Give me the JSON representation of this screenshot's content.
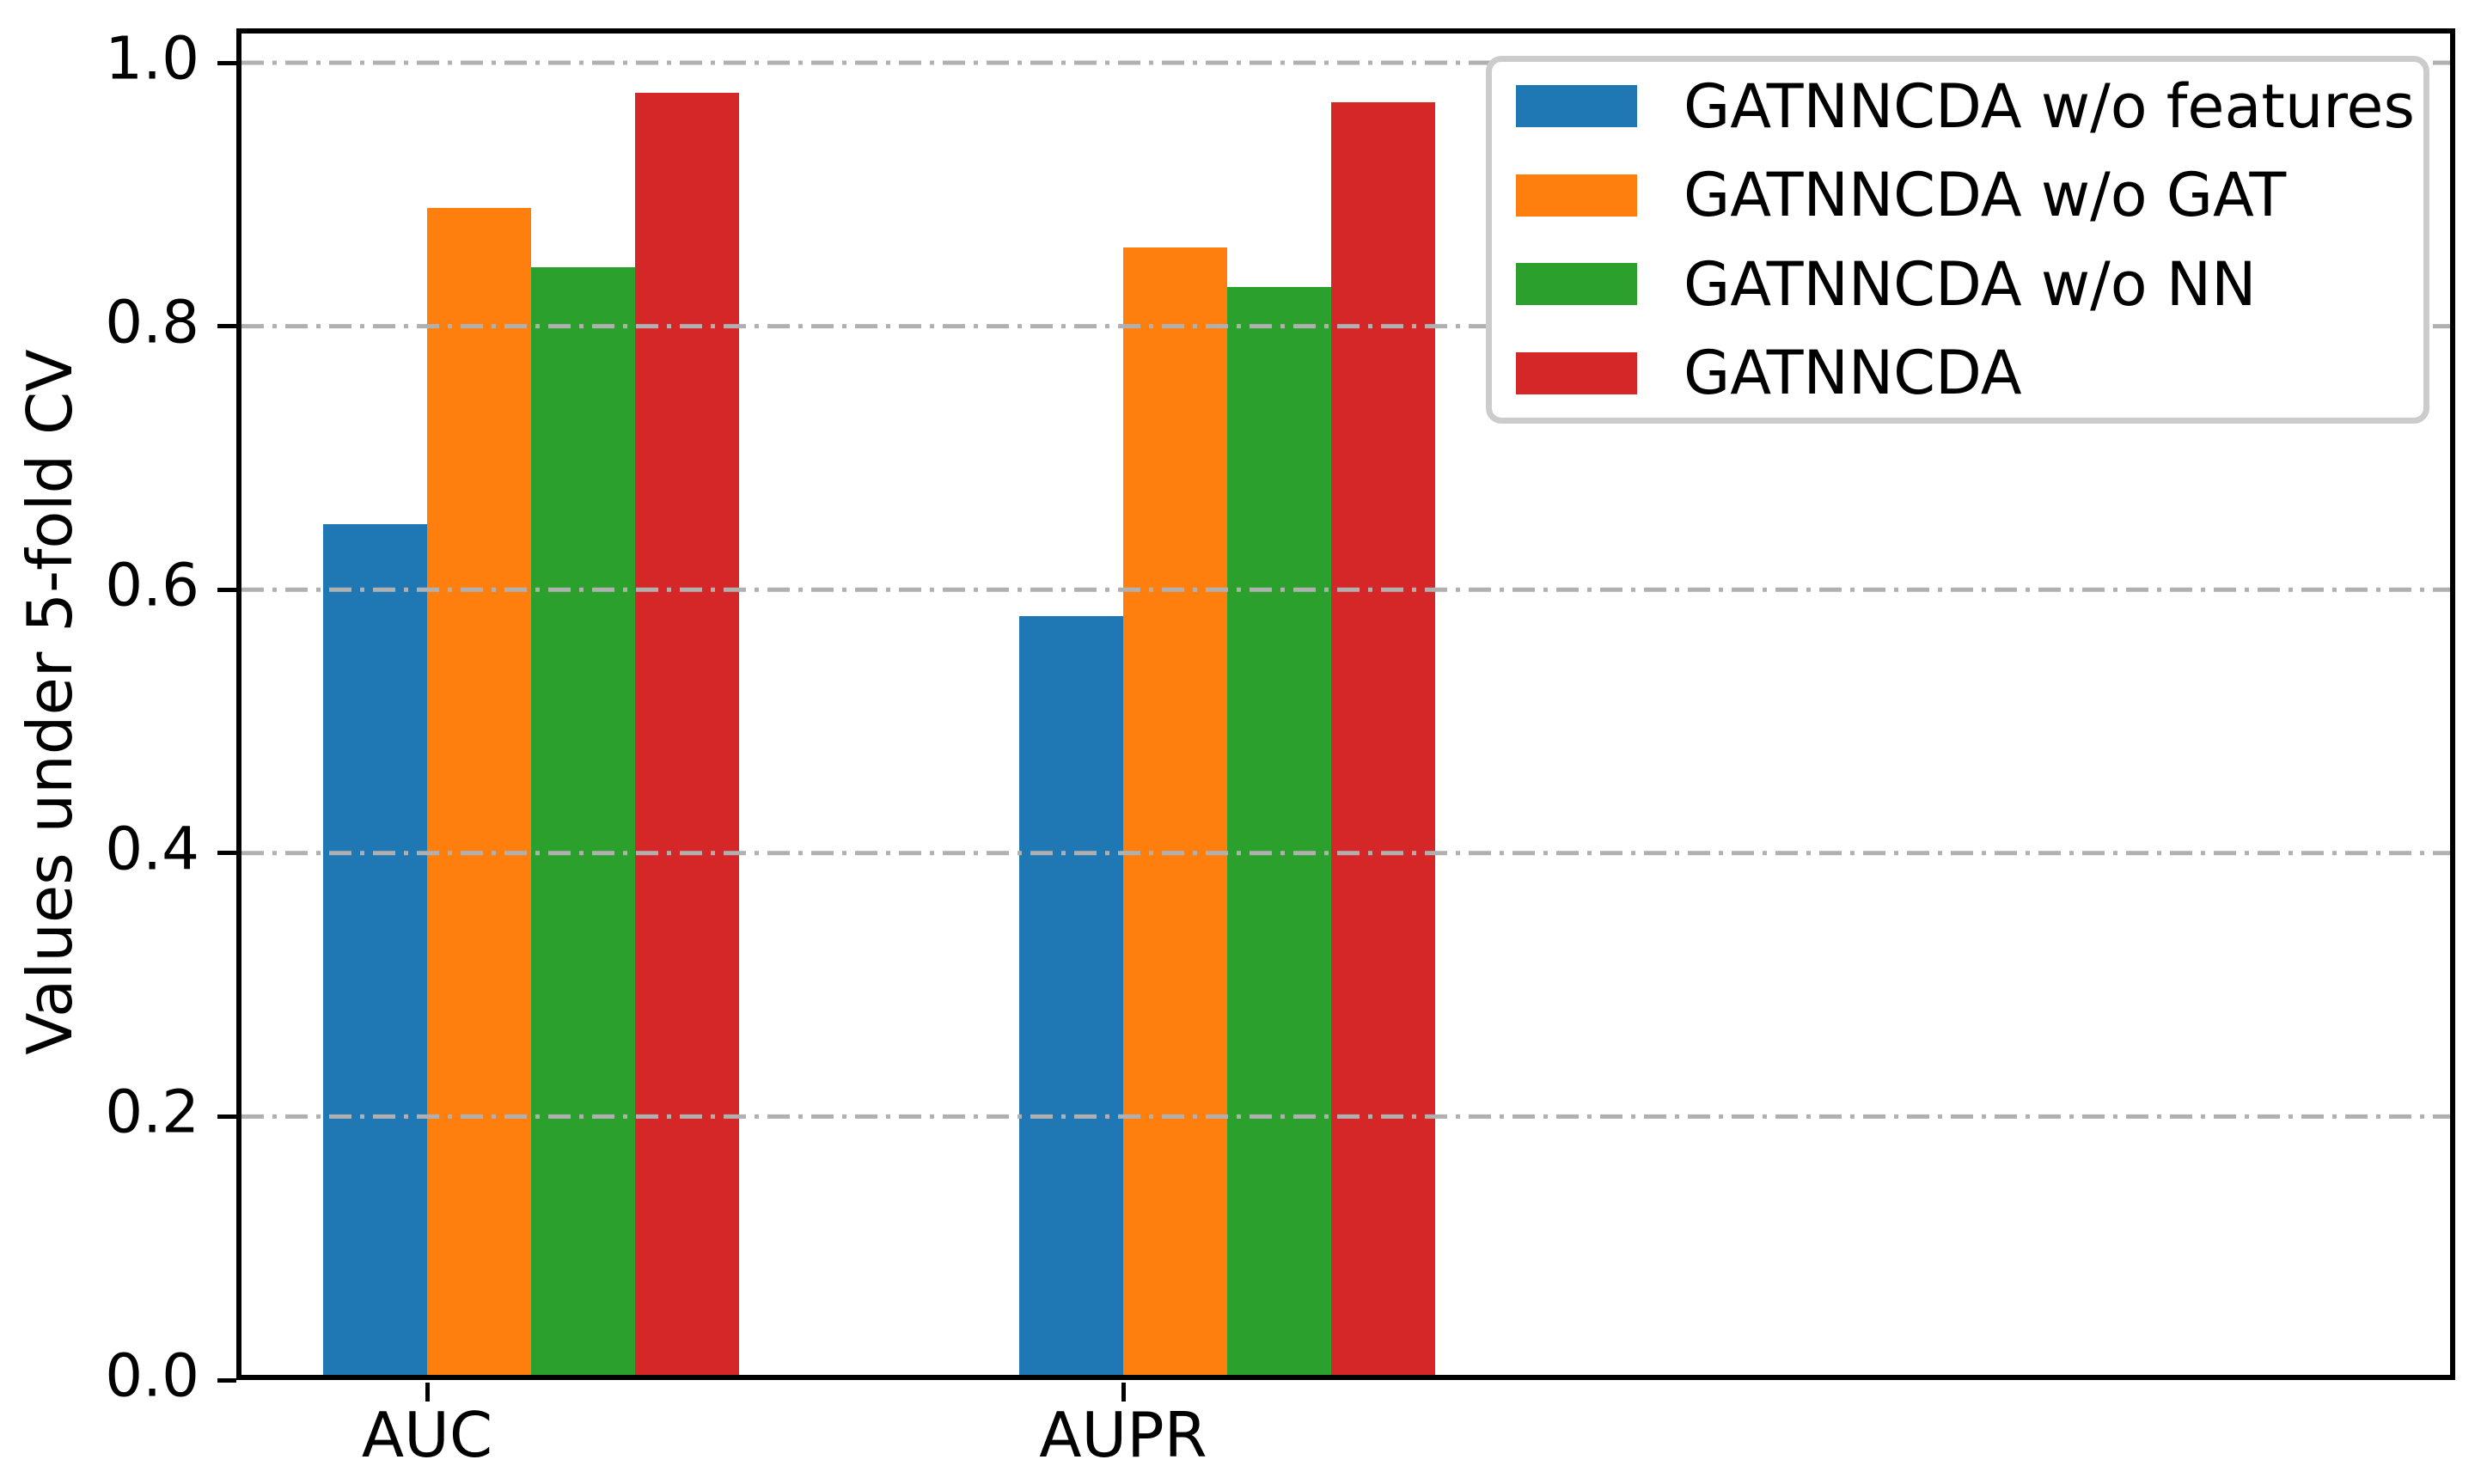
{
  "chart_data": {
    "type": "bar",
    "title": "",
    "xlabel": "",
    "ylabel": "Values under 5-fold CV",
    "categories": [
      "AUC",
      "AUPR"
    ],
    "series": [
      {
        "name": "GATNNCDA w/o features",
        "color": "#1f77b4",
        "values": [
          0.65,
          0.58
        ]
      },
      {
        "name": "GATNNCDA w/o GAT",
        "color": "#ff7f0e",
        "values": [
          0.89,
          0.86
        ]
      },
      {
        "name": "GATNNCDA w/o NN",
        "color": "#2ca02c",
        "values": [
          0.845,
          0.83
        ]
      },
      {
        "name": "GATNNCDA",
        "color": "#d62728",
        "values": [
          0.977,
          0.97
        ]
      }
    ],
    "ylim": [
      0.0,
      1.0
    ],
    "yticks": [
      "0.0",
      "0.2",
      "0.4",
      "0.6",
      "0.8",
      "1.0"
    ],
    "grid": {
      "axis": "y",
      "style": "dash-dot",
      "color": "#b0b0b0",
      "above_bars": true
    },
    "legend_position": "upper right",
    "colors": {
      "spine": "#000000",
      "background": "#ffffff",
      "legend_border": "#cccccc",
      "text": "#000000"
    }
  }
}
